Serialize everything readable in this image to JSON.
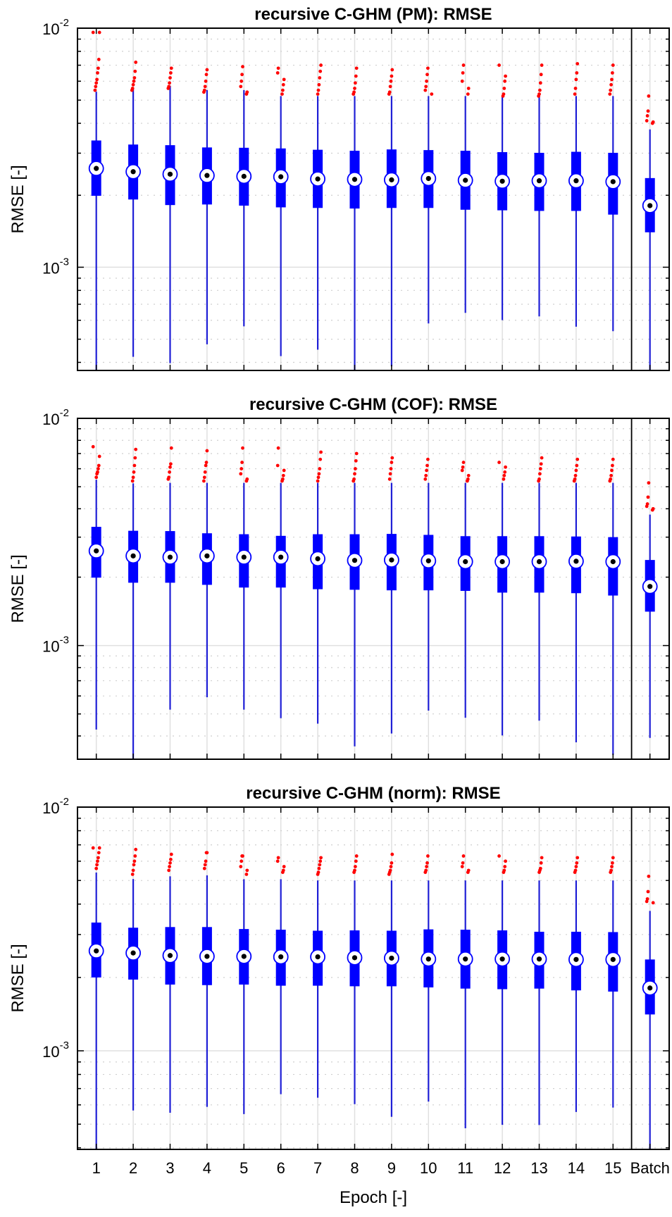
{
  "chart_data": [
    {
      "type": "box",
      "title": "recursive C-GHM (PM): RMSE",
      "ylabel": "RMSE [-]",
      "xlabel": "",
      "yscale": "log",
      "ylim": [
        0.00037,
        0.01
      ],
      "yticklabels": [
        {
          "base": "10",
          "exp": "-2",
          "value": 0.01
        },
        {
          "base": "10",
          "exp": "-3",
          "value": 0.001
        }
      ],
      "categories": [
        "1",
        "2",
        "3",
        "4",
        "5",
        "6",
        "7",
        "8",
        "9",
        "10",
        "11",
        "12",
        "13",
        "14",
        "15",
        "Batch"
      ],
      "box_fields": [
        "whisker_low",
        "q1",
        "median",
        "q3",
        "whisker_high"
      ],
      "boxes": [
        [
          0.00036,
          0.00199,
          0.00259,
          0.00339,
          0.00542
        ],
        [
          0.000422,
          0.00192,
          0.00251,
          0.00326,
          0.00555
        ],
        [
          0.000397,
          0.00182,
          0.00245,
          0.00324,
          0.00574
        ],
        [
          0.000476,
          0.00183,
          0.00242,
          0.00317,
          0.00551
        ],
        [
          0.000566,
          0.00181,
          0.0024,
          0.00316,
          0.00551
        ],
        [
          0.000425,
          0.00178,
          0.00239,
          0.00314,
          0.0052
        ],
        [
          0.000452,
          0.00177,
          0.00234,
          0.0031,
          0.0052
        ],
        [
          0.00036,
          0.00176,
          0.00233,
          0.00307,
          0.0052
        ],
        [
          0.000385,
          0.00177,
          0.00232,
          0.00311,
          0.0052
        ],
        [
          0.000582,
          0.00177,
          0.00235,
          0.00309,
          0.0052
        ],
        [
          0.000644,
          0.00174,
          0.00231,
          0.00307,
          0.0052
        ],
        [
          0.000601,
          0.00173,
          0.00229,
          0.00303,
          0.0052
        ],
        [
          0.000623,
          0.00172,
          0.0023,
          0.00301,
          0.0052
        ],
        [
          0.000564,
          0.00172,
          0.0023,
          0.00304,
          0.0052
        ],
        [
          0.00054,
          0.00166,
          0.00228,
          0.00301,
          0.0052
        ],
        [
          0.00036,
          0.0014,
          0.00181,
          0.00236,
          0.00377
        ]
      ],
      "outliers": [
        [
          0.0096,
          0.0096,
          0.0074,
          0.0068,
          0.0065,
          0.0061,
          0.0059,
          0.0057,
          0.0055
        ],
        [
          0.0072,
          0.0066,
          0.0062,
          0.006,
          0.0058,
          0.0056,
          0.0055
        ],
        [
          0.0068,
          0.0065,
          0.0062,
          0.0059,
          0.0057,
          0.0056
        ],
        [
          0.0067,
          0.0064,
          0.006,
          0.0057,
          0.0055,
          0.0054
        ],
        [
          0.0069,
          0.0064,
          0.006,
          0.0057,
          0.0054,
          0.0053
        ],
        [
          0.0068,
          0.0065,
          0.0061,
          0.0058,
          0.0055,
          0.0053
        ],
        [
          0.007,
          0.0066,
          0.0062,
          0.0058,
          0.0055,
          0.0053
        ],
        [
          0.0068,
          0.0063,
          0.0059,
          0.0056,
          0.0054,
          0.0053
        ],
        [
          0.0067,
          0.0063,
          0.006,
          0.0057,
          0.0054,
          0.0053
        ],
        [
          0.0068,
          0.0064,
          0.006,
          0.0057,
          0.0055,
          0.0053
        ],
        [
          0.007,
          0.0065,
          0.006,
          0.0056,
          0.0053
        ],
        [
          0.007,
          0.0063,
          0.006,
          0.0056,
          0.0053,
          0.0052
        ],
        [
          0.007,
          0.0064,
          0.0059,
          0.0055,
          0.0053,
          0.0052
        ],
        [
          0.0071,
          0.0065,
          0.0061,
          0.0056,
          0.0053
        ],
        [
          0.007,
          0.0065,
          0.0061,
          0.0058,
          0.0055,
          0.0053
        ],
        [
          0.0052,
          0.0045,
          0.0043,
          0.0041,
          0.00405,
          0.004
        ]
      ]
    },
    {
      "type": "box",
      "title": "recursive C-GHM (COF): RMSE",
      "ylabel": "RMSE [-]",
      "xlabel": "",
      "yscale": "log",
      "ylim": [
        0.000316,
        0.01
      ],
      "yticklabels": [
        {
          "base": "10",
          "exp": "-2",
          "value": 0.01
        },
        {
          "base": "10",
          "exp": "-3",
          "value": 0.001
        }
      ],
      "categories": [
        "1",
        "2",
        "3",
        "4",
        "5",
        "6",
        "7",
        "8",
        "9",
        "10",
        "11",
        "12",
        "13",
        "14",
        "15",
        "Batch"
      ],
      "box_fields": [
        "whisker_low",
        "q1",
        "median",
        "q3",
        "whisker_high"
      ],
      "boxes": [
        [
          0.000427,
          0.00199,
          0.00261,
          0.00333,
          0.00537
        ],
        [
          0.0003,
          0.00189,
          0.00248,
          0.0032,
          0.00517
        ],
        [
          0.000522,
          0.00189,
          0.00245,
          0.00319,
          0.0052
        ],
        [
          0.000592,
          0.00185,
          0.00248,
          0.00312,
          0.0052
        ],
        [
          0.000522,
          0.0018,
          0.00245,
          0.00309,
          0.0052
        ],
        [
          0.000479,
          0.0018,
          0.00245,
          0.00304,
          0.0052
        ],
        [
          0.000453,
          0.00177,
          0.00241,
          0.00309,
          0.0052
        ],
        [
          0.00036,
          0.00176,
          0.00237,
          0.00309,
          0.0052
        ],
        [
          0.00041,
          0.00175,
          0.00238,
          0.0031,
          0.0052
        ],
        [
          0.000517,
          0.00175,
          0.00236,
          0.00307,
          0.0052
        ],
        [
          0.000481,
          0.00174,
          0.00234,
          0.00303,
          0.0052
        ],
        [
          0.000402,
          0.00171,
          0.00234,
          0.00303,
          0.0052
        ],
        [
          0.000467,
          0.00171,
          0.00234,
          0.00303,
          0.0052
        ],
        [
          0.000375,
          0.0017,
          0.00235,
          0.00302,
          0.0052
        ],
        [
          0.00033,
          0.00166,
          0.00234,
          0.003,
          0.0052
        ],
        [
          0.000392,
          0.00141,
          0.00182,
          0.00238,
          0.00377
        ]
      ],
      "outliers": [
        [
          0.0075,
          0.0068,
          0.0062,
          0.006,
          0.0058,
          0.0057,
          0.0055
        ],
        [
          0.0073,
          0.0067,
          0.0062,
          0.0058,
          0.0055,
          0.0053
        ],
        [
          0.0074,
          0.0063,
          0.0061,
          0.0058,
          0.0055,
          0.0054
        ],
        [
          0.0072,
          0.0064,
          0.0062,
          0.0058,
          0.0055,
          0.0053
        ],
        [
          0.0074,
          0.0064,
          0.006,
          0.0057,
          0.0054,
          0.0053
        ],
        [
          0.0074,
          0.0062,
          0.0059,
          0.0056,
          0.0054,
          0.0053
        ],
        [
          0.0071,
          0.0066,
          0.006,
          0.0057,
          0.0055,
          0.0053
        ],
        [
          0.007,
          0.0065,
          0.006,
          0.0057,
          0.0054,
          0.0053
        ],
        [
          0.0067,
          0.0064,
          0.006,
          0.0057,
          0.0054
        ],
        [
          0.0066,
          0.0062,
          0.0059,
          0.0056,
          0.0054
        ],
        [
          0.0064,
          0.0061,
          0.0059,
          0.0056,
          0.0054,
          0.0053
        ],
        [
          0.0064,
          0.0061,
          0.0058,
          0.0056,
          0.0054
        ],
        [
          0.0067,
          0.0063,
          0.006,
          0.0057,
          0.0054,
          0.0053
        ],
        [
          0.0066,
          0.0062,
          0.0059,
          0.0056,
          0.0054,
          0.0053
        ],
        [
          0.0066,
          0.0062,
          0.0059,
          0.0056,
          0.0054,
          0.0053
        ],
        [
          0.0052,
          0.0045,
          0.0042,
          0.0041,
          0.004,
          0.00395
        ]
      ]
    },
    {
      "type": "box",
      "title": "recursive C-GHM (norm): RMSE",
      "ylabel": "RMSE [-]",
      "xlabel": "Epoch [-]",
      "yscale": "log",
      "ylim": [
        0.000394,
        0.01
      ],
      "yticklabels": [
        {
          "base": "10",
          "exp": "-2",
          "value": 0.01
        },
        {
          "base": "10",
          "exp": "-3",
          "value": 0.001
        }
      ],
      "categories": [
        "1",
        "2",
        "3",
        "4",
        "5",
        "6",
        "7",
        "8",
        "9",
        "10",
        "11",
        "12",
        "13",
        "14",
        "15",
        "Batch"
      ],
      "box_fields": [
        "whisker_low",
        "q1",
        "median",
        "q3",
        "whisker_high"
      ],
      "boxes": [
        [
          0.00038,
          0.002,
          0.00257,
          0.00336,
          0.00539
        ],
        [
          0.000569,
          0.00196,
          0.00252,
          0.0032,
          0.00507
        ],
        [
          0.000557,
          0.00187,
          0.00246,
          0.00322,
          0.0052
        ],
        [
          0.000589,
          0.00186,
          0.00244,
          0.00322,
          0.00525
        ],
        [
          0.00055,
          0.00187,
          0.00244,
          0.00316,
          0.00506
        ],
        [
          0.000664,
          0.00185,
          0.00243,
          0.00314,
          0.00506
        ],
        [
          0.000642,
          0.00185,
          0.00243,
          0.00311,
          0.005
        ],
        [
          0.000604,
          0.00184,
          0.00241,
          0.00312,
          0.005
        ],
        [
          0.000536,
          0.00184,
          0.0024,
          0.00311,
          0.005
        ],
        [
          0.000619,
          0.00182,
          0.00238,
          0.00315,
          0.005
        ],
        [
          0.000481,
          0.0018,
          0.00238,
          0.00314,
          0.005
        ],
        [
          0.000497,
          0.00179,
          0.00238,
          0.00312,
          0.005
        ],
        [
          0.000496,
          0.0018,
          0.00238,
          0.00308,
          0.005
        ],
        [
          0.000561,
          0.00177,
          0.00237,
          0.00308,
          0.005
        ],
        [
          0.000585,
          0.00175,
          0.00237,
          0.00307,
          0.005
        ],
        [
          0.00039,
          0.00141,
          0.00181,
          0.00237,
          0.00375
        ]
      ],
      "outliers": [
        [
          0.0068,
          0.0068,
          0.0065,
          0.0062,
          0.006,
          0.0058,
          0.0056
        ],
        [
          0.0067,
          0.0063,
          0.006,
          0.0058,
          0.0055,
          0.0053
        ],
        [
          0.0064,
          0.0061,
          0.0059,
          0.0057,
          0.0055
        ],
        [
          0.0065,
          0.0065,
          0.006,
          0.0058,
          0.0056
        ],
        [
          0.0063,
          0.0063,
          0.006,
          0.0057,
          0.0055,
          0.0053
        ],
        [
          0.0062,
          0.006,
          0.0057,
          0.0055,
          0.0054
        ],
        [
          0.0062,
          0.006,
          0.0058,
          0.0056,
          0.0054,
          0.0053
        ],
        [
          0.0063,
          0.006,
          0.0057,
          0.0055,
          0.0054
        ],
        [
          0.0064,
          0.0059,
          0.0057,
          0.0055,
          0.0054,
          0.0053
        ],
        [
          0.0063,
          0.0059,
          0.0057,
          0.0055,
          0.0054
        ],
        [
          0.0063,
          0.0059,
          0.0057,
          0.0055,
          0.0054
        ],
        [
          0.0063,
          0.006,
          0.0057,
          0.0055,
          0.0054
        ],
        [
          0.0062,
          0.0059,
          0.0056,
          0.0055,
          0.0054
        ],
        [
          0.0062,
          0.0059,
          0.0057,
          0.0055,
          0.0054
        ],
        [
          0.0062,
          0.0059,
          0.0057,
          0.0055,
          0.0054
        ],
        [
          0.0052,
          0.0045,
          0.0042,
          0.0041,
          0.00405
        ]
      ]
    }
  ],
  "colors": {
    "box": "#0000ff",
    "whisker": "#1f1fd6",
    "outlier": "#ff0000",
    "median_fill": "#ffffff",
    "median_dot": "#000000",
    "grid": "#e0e0e0",
    "axis": "#000000"
  }
}
